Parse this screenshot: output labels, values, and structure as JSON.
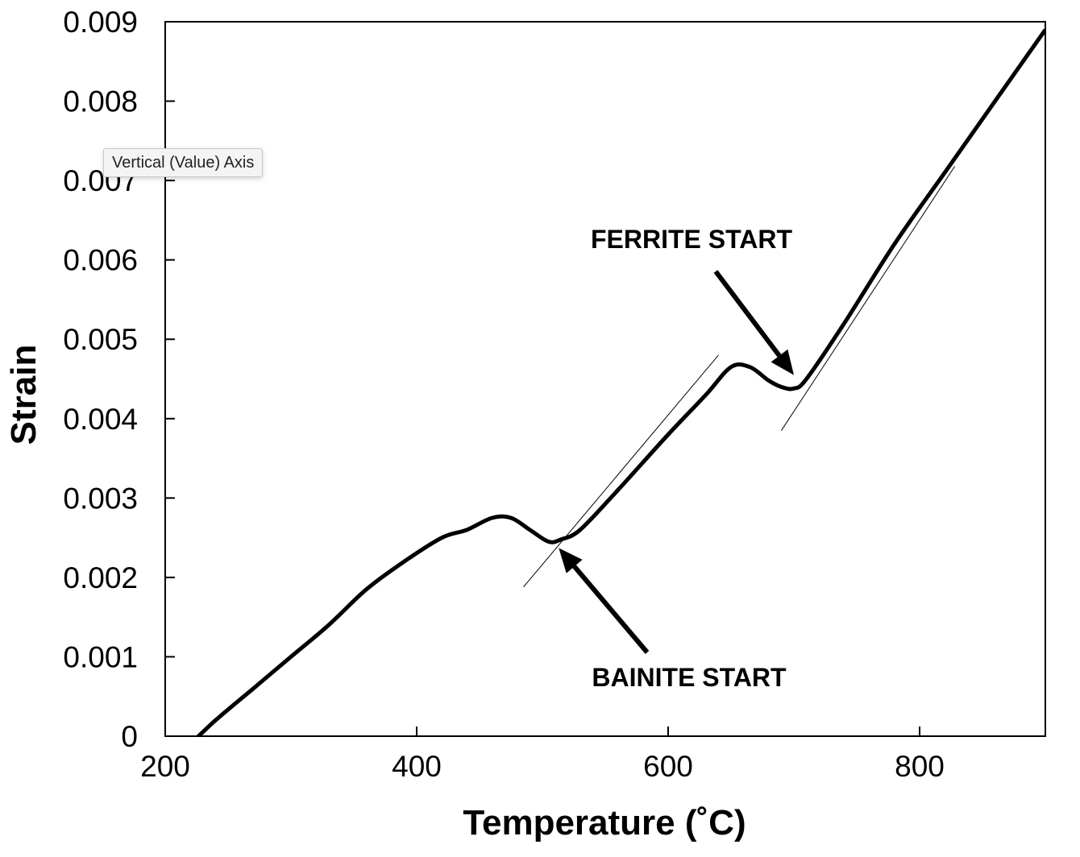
{
  "chart_data": {
    "type": "line",
    "title": "",
    "xlabel": "Temperature (˚C)",
    "ylabel": "Strain",
    "xlim": [
      200,
      900
    ],
    "ylim": [
      0,
      0.009
    ],
    "x_ticks": [
      200,
      400,
      600,
      800
    ],
    "x_tick_labels": [
      "200",
      "400",
      "600",
      "800"
    ],
    "y_ticks": [
      0,
      0.001,
      0.002,
      0.003,
      0.004,
      0.005,
      0.006,
      0.007,
      0.008,
      0.009
    ],
    "y_tick_labels": [
      "0",
      "0.001",
      "0.002",
      "0.003",
      "0.004",
      "0.005",
      "0.006",
      "0.007",
      "0.008",
      "0.009"
    ],
    "grid": false,
    "legend": "none",
    "series": [
      {
        "x": [
          220,
          240,
          270,
          300,
          330,
          360,
          390,
          420,
          440,
          460,
          475,
          490,
          505,
          515,
          530,
          560,
          600,
          630,
          650,
          665,
          680,
          690,
          700,
          710,
          740,
          780,
          820,
          860,
          900
        ],
        "y": [
          -0.0001,
          0.0002,
          0.0006,
          0.001,
          0.0014,
          0.00185,
          0.0022,
          0.0025,
          0.0026,
          0.00275,
          0.00275,
          0.0026,
          0.00245,
          0.00248,
          0.0026,
          0.0031,
          0.0038,
          0.0043,
          0.00465,
          0.00465,
          0.00448,
          0.0044,
          0.00438,
          0.0045,
          0.0052,
          0.0062,
          0.0071,
          0.008,
          0.0089
        ]
      }
    ],
    "tangent_lines": [
      {
        "x": [
          485,
          640
        ],
        "y": [
          0.00188,
          0.0048
        ]
      },
      {
        "x": [
          690,
          828
        ],
        "y": [
          0.00385,
          0.00718
        ]
      }
    ],
    "annotations": [
      {
        "text": "FERRITE START",
        "point_x": 700,
        "point_y": 0.00455
      },
      {
        "text": "BAINITE START",
        "point_x": 513,
        "point_y": 0.00237
      }
    ]
  },
  "tooltip": {
    "text": "Vertical (Value) Axis"
  }
}
